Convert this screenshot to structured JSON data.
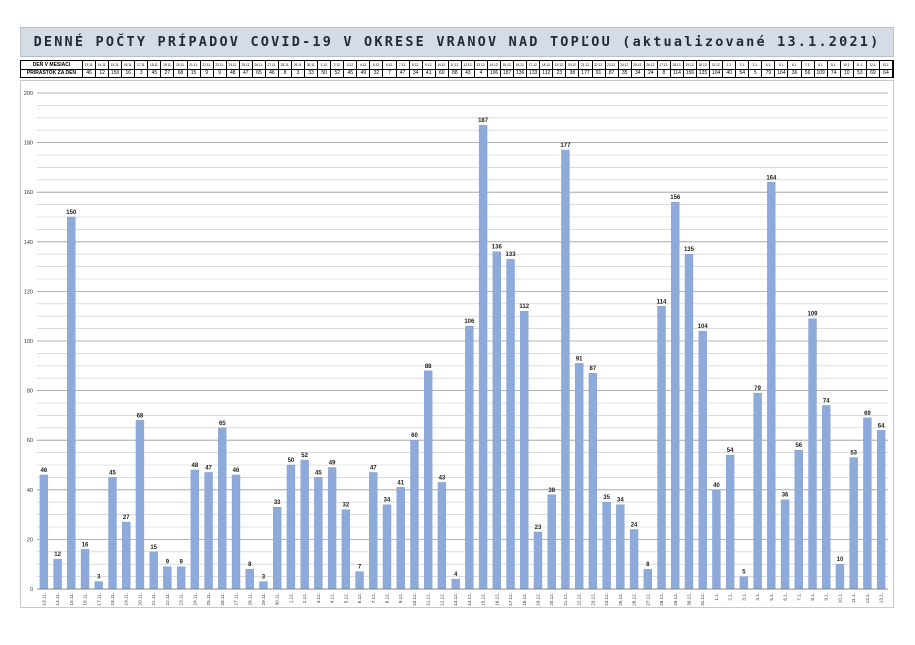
{
  "title": "DENNÉ POČTY PRÍPADOV COVID-19 V OKRESE VRANOV NAD TOPĽOU (aktualizované 13.1.2021)",
  "table": {
    "row1_label": "DEŇ V MESIACI",
    "row2_label": "PRÍRASTOK ZA DEŇ",
    "dates": [
      "13.11.",
      "14.11.",
      "15.11.",
      "16.11.",
      "17.11.",
      "18.11.",
      "19.11.",
      "20.11.",
      "21.11.",
      "22.11.",
      "23.11.",
      "24.11.",
      "25.11.",
      "26.11.",
      "27.11.",
      "28.11.",
      "29.11.",
      "30.11.",
      "1.12.",
      "2.12.",
      "3.12.",
      "4.12.",
      "5.12.",
      "6.12.",
      "7.12.",
      "8.12.",
      "9.12.",
      "10.12.",
      "11.12.",
      "12.12.",
      "13.12.",
      "14.12.",
      "15.12.",
      "16.12.",
      "17.12.",
      "18.12.",
      "19.12.",
      "20.12.",
      "21.12.",
      "22.12.",
      "23.12.",
      "24.12.",
      "25.12.",
      "26.12.",
      "27.12.",
      "28.12.",
      "29.12.",
      "30.12.",
      "31.12.",
      "1.1.",
      "2.1.",
      "3.1.",
      "4.1.",
      "5.1.",
      "6.1.",
      "7.1.",
      "8.1.",
      "9.1.",
      "10.1.",
      "11.1.",
      "12.1.",
      "13.1."
    ]
  },
  "chart_data": {
    "type": "bar",
    "categories": [
      "13.11.",
      "14.11.",
      "15.11.",
      "16.11.",
      "17.11.",
      "18.11.",
      "19.11.",
      "20.11.",
      "21.11.",
      "22.11.",
      "23.11.",
      "24.11.",
      "25.11.",
      "26.11.",
      "27.11.",
      "28.11.",
      "29.11.",
      "30.11.",
      "1.12.",
      "2.12.",
      "3.12.",
      "4.12.",
      "5.12.",
      "6.12.",
      "7.12.",
      "8.12.",
      "9.12.",
      "10.12.",
      "11.12.",
      "12.12.",
      "13.12.",
      "14.12.",
      "15.12.",
      "16.12.",
      "17.12.",
      "18.12.",
      "19.12.",
      "20.12.",
      "21.12.",
      "22.12.",
      "23.12.",
      "24.12.",
      "25.12.",
      "26.12.",
      "27.12.",
      "28.12.",
      "29.12.",
      "30.12.",
      "31.12.",
      "1.1.",
      "2.1.",
      "3.1.",
      "4.1.",
      "5.1.",
      "6.1.",
      "7.1.",
      "8.1.",
      "9.1.",
      "10.1.",
      "11.1.",
      "12.1.",
      "13.1."
    ],
    "values": [
      46,
      12,
      150,
      16,
      3,
      45,
      27,
      68,
      15,
      9,
      9,
      48,
      47,
      65,
      46,
      8,
      3,
      33,
      50,
      52,
      45,
      49,
      32,
      7,
      47,
      34,
      41,
      60,
      88,
      43,
      4,
      106,
      187,
      136,
      133,
      112,
      23,
      38,
      177,
      91,
      87,
      35,
      34,
      24,
      8,
      114,
      156,
      135,
      104,
      40,
      54,
      5,
      79,
      164,
      36,
      56,
      109,
      74,
      10,
      53,
      69,
      64
    ],
    "ylim": [
      0,
      200
    ],
    "yticks": [
      0,
      20,
      40,
      60,
      80,
      100,
      120,
      140,
      160,
      180,
      200
    ],
    "grid": true,
    "title": "DENNÉ POČTY PRÍPADOV COVID-19 V OKRESE VRANOV NAD TOPĽOU (aktualizované 13.1.2021)",
    "xlabel": "",
    "ylabel": ""
  },
  "colors": {
    "bar": "#8eaadb",
    "bar_stroke": "#7f9ccf",
    "grid": "#a6a6a6",
    "title_bg": "#d6dce5"
  }
}
